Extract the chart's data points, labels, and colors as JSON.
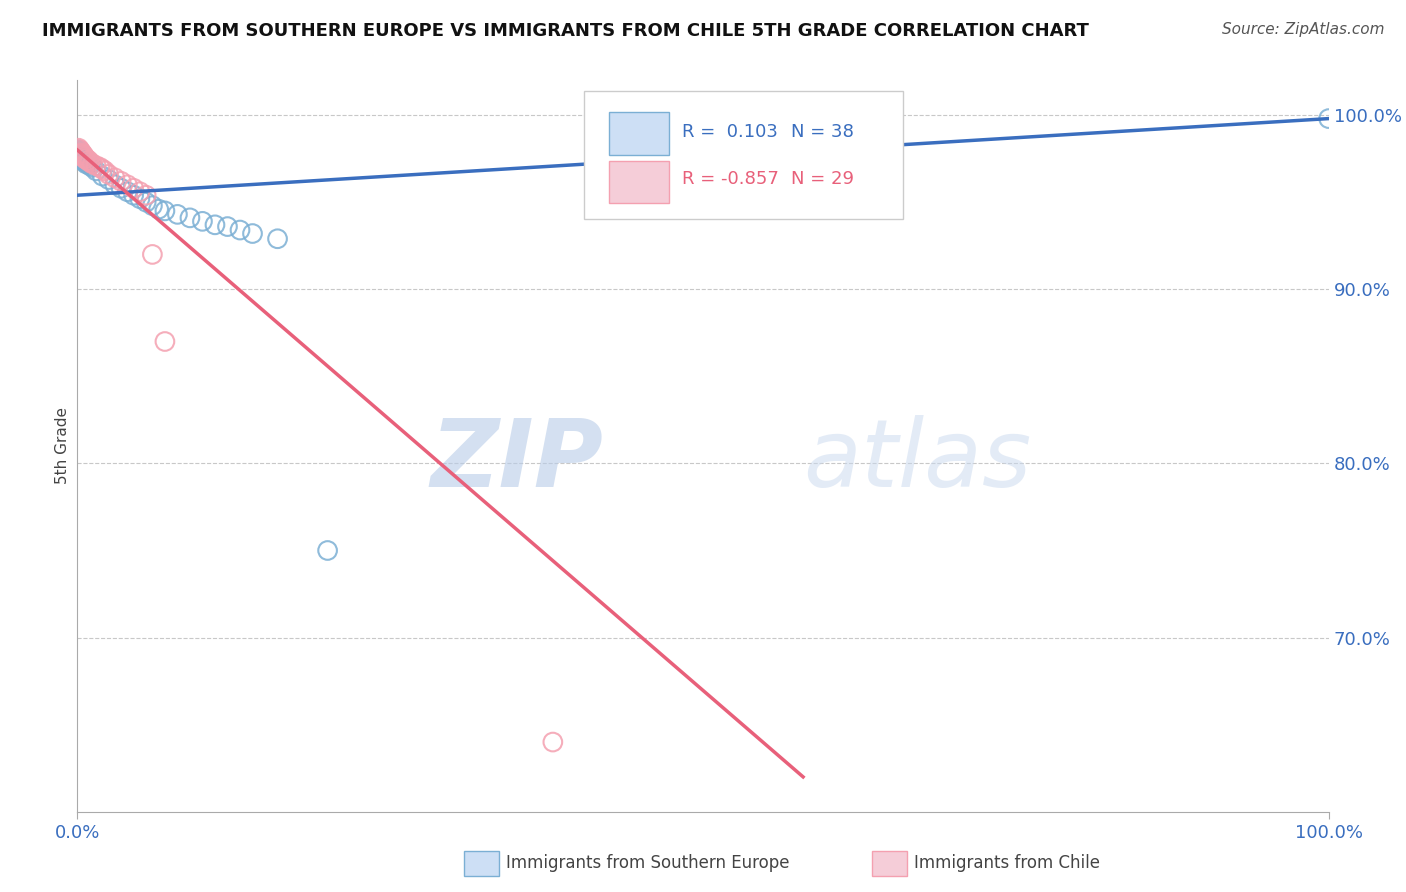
{
  "title": "IMMIGRANTS FROM SOUTHERN EUROPE VS IMMIGRANTS FROM CHILE 5TH GRADE CORRELATION CHART",
  "source": "Source: ZipAtlas.com",
  "ylabel": "5th Grade",
  "legend_blue_label": "Immigrants from Southern Europe",
  "legend_pink_label": "Immigrants from Chile",
  "legend_r_blue": "R =  0.103",
  "legend_r_pink": "R = -0.857",
  "legend_n_blue": "N = 38",
  "legend_n_pink": "N = 29",
  "blue_color": "#7BAFD4",
  "pink_color": "#F4A0B0",
  "blue_line_color": "#3A6EBF",
  "pink_line_color": "#E8607A",
  "watermark_zip": "ZIP",
  "watermark_atlas": "atlas",
  "xlim": [
    0.0,
    1.0
  ],
  "ylim": [
    0.6,
    1.02
  ],
  "ytick_positions": [
    1.0,
    0.9,
    0.8,
    0.7
  ],
  "ytick_labels": [
    "100.0%",
    "90.0%",
    "80.0%",
    "70.0%"
  ],
  "xtick_positions": [
    0.0,
    1.0
  ],
  "xtick_labels": [
    "0.0%",
    "100.0%"
  ],
  "background_color": "#ffffff",
  "grid_color": "#c8c8c8",
  "blue_line_y0": 0.954,
  "blue_line_y1": 0.998,
  "pink_line_y0": 0.98,
  "pink_line_y1": 0.62,
  "pink_line_x1": 0.58,
  "blue_dots": [
    [
      0.001,
      0.98
    ],
    [
      0.002,
      0.979
    ],
    [
      0.003,
      0.978
    ],
    [
      0.003,
      0.976
    ],
    [
      0.004,
      0.977
    ],
    [
      0.004,
      0.975
    ],
    [
      0.005,
      0.976
    ],
    [
      0.005,
      0.974
    ],
    [
      0.006,
      0.975
    ],
    [
      0.006,
      0.973
    ],
    [
      0.007,
      0.974
    ],
    [
      0.007,
      0.972
    ],
    [
      0.008,
      0.973
    ],
    [
      0.009,
      0.972
    ],
    [
      0.01,
      0.971
    ],
    [
      0.012,
      0.97
    ],
    [
      0.015,
      0.968
    ],
    [
      0.02,
      0.965
    ],
    [
      0.025,
      0.963
    ],
    [
      0.03,
      0.96
    ],
    [
      0.035,
      0.958
    ],
    [
      0.04,
      0.956
    ],
    [
      0.045,
      0.954
    ],
    [
      0.05,
      0.952
    ],
    [
      0.055,
      0.95
    ],
    [
      0.06,
      0.948
    ],
    [
      0.065,
      0.946
    ],
    [
      0.07,
      0.945
    ],
    [
      0.08,
      0.943
    ],
    [
      0.09,
      0.941
    ],
    [
      0.1,
      0.939
    ],
    [
      0.11,
      0.937
    ],
    [
      0.12,
      0.936
    ],
    [
      0.13,
      0.934
    ],
    [
      0.14,
      0.932
    ],
    [
      0.16,
      0.929
    ],
    [
      0.2,
      0.75
    ],
    [
      1.0,
      0.998
    ]
  ],
  "pink_dots": [
    [
      0.001,
      0.981
    ],
    [
      0.002,
      0.98
    ],
    [
      0.003,
      0.979
    ],
    [
      0.003,
      0.978
    ],
    [
      0.004,
      0.978
    ],
    [
      0.004,
      0.977
    ],
    [
      0.005,
      0.977
    ],
    [
      0.005,
      0.976
    ],
    [
      0.006,
      0.976
    ],
    [
      0.006,
      0.975
    ],
    [
      0.007,
      0.975
    ],
    [
      0.008,
      0.974
    ],
    [
      0.009,
      0.974
    ],
    [
      0.01,
      0.973
    ],
    [
      0.012,
      0.972
    ],
    [
      0.015,
      0.971
    ],
    [
      0.018,
      0.97
    ],
    [
      0.02,
      0.969
    ],
    [
      0.022,
      0.968
    ],
    [
      0.025,
      0.966
    ],
    [
      0.03,
      0.964
    ],
    [
      0.035,
      0.962
    ],
    [
      0.04,
      0.96
    ],
    [
      0.045,
      0.958
    ],
    [
      0.05,
      0.956
    ],
    [
      0.055,
      0.954
    ],
    [
      0.06,
      0.92
    ],
    [
      0.07,
      0.87
    ],
    [
      0.38,
      0.64
    ]
  ]
}
